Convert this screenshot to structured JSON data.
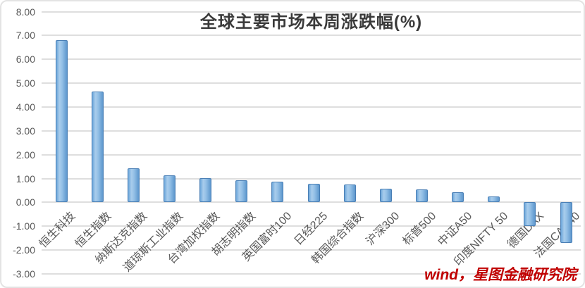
{
  "title": "全球主要市场本周涨跌幅(%)",
  "watermark": "wind，星图金融研究院",
  "colors": {
    "bar_fill": "#5b9bd5",
    "bar_border": "#4a7fb5",
    "gridline": "#dedede",
    "axis_text": "#595959",
    "title_text": "#3a3a3a",
    "watermark_text": "#c00000"
  },
  "chart_data": {
    "type": "bar",
    "title": "全球主要市场本周涨跌幅(%)",
    "xlabel": "",
    "ylabel": "",
    "categories": [
      "恒生科技",
      "恒生指数",
      "纳斯达克指数",
      "道琼斯工业指数",
      "台湾加权指数",
      "胡志明指数",
      "英国富时100",
      "日经225",
      "韩国综合指数",
      "沪深300",
      "标普500",
      "中证A50",
      "印度NIFTY 50",
      "德国DAX",
      "法国CAC40"
    ],
    "values": [
      6.8,
      4.65,
      1.42,
      1.13,
      1.02,
      0.93,
      0.88,
      0.78,
      0.76,
      0.56,
      0.55,
      0.42,
      0.25,
      -1.0,
      -1.7
    ],
    "ylim": [
      -3,
      8
    ],
    "ytick_step": 1,
    "ytick_labels": [
      "8.00",
      "7.00",
      "6.00",
      "5.00",
      "4.00",
      "3.00",
      "2.00",
      "1.00",
      "0.00",
      "-1.00",
      "-2.00",
      "-3.00"
    ],
    "grid": true,
    "legend": "none",
    "x_tick_rotation_deg": 45
  }
}
